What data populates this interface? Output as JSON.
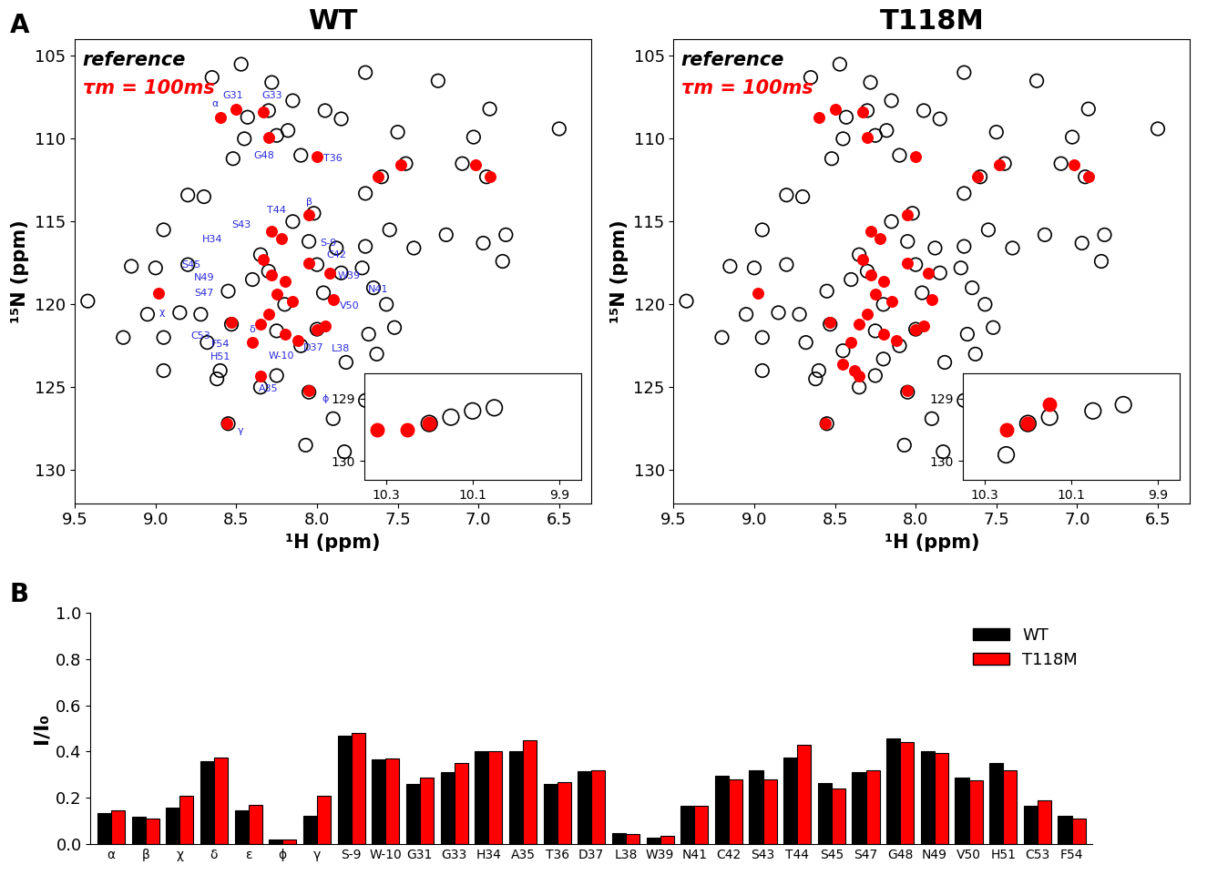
{
  "chart_data": [
    {
      "type": "scatter",
      "panel_label": "A",
      "title": "WT",
      "x_label": "¹H (ppm)",
      "y_label": "¹⁵N (ppm)",
      "xlim": [
        9.5,
        6.3
      ],
      "ylim": [
        132,
        104
      ],
      "xticks": [
        {
          "value": 9.5,
          "label": "9.5"
        },
        {
          "value": 9,
          "label": "9.0"
        },
        {
          "value": 8.5,
          "label": "8.5"
        },
        {
          "value": 8,
          "label": "8.0"
        },
        {
          "value": 7.5,
          "label": "7.5"
        },
        {
          "value": 7,
          "label": "7.0"
        },
        {
          "value": 6.5,
          "label": "6.5"
        }
      ],
      "yticks": [
        105,
        110,
        115,
        120,
        125,
        130
      ],
      "grid": false,
      "marker": "o",
      "series": [
        {
          "name": "reference",
          "color": "#000000",
          "x": [
            9.42,
            9.2,
            8.95,
            8.95,
            9.15,
            9.0,
            8.8,
            8.65,
            8.47,
            8.28,
            8.15,
            7.95,
            7.85,
            7.7,
            7.25,
            6.93,
            6.5,
            7.5,
            7.03,
            8.8,
            8.95,
            8.55,
            8.7,
            8.52,
            7.7,
            7.55,
            7.4,
            7.2,
            6.97,
            6.83,
            6.85,
            7.7,
            7.72,
            7.88,
            7.85,
            7.65,
            7.57,
            7.52,
            7.63,
            7.68,
            7.82,
            7.9,
            7.83,
            8.07,
            7.7,
            8.62,
            8.6,
            8.55,
            9.05,
            8.85,
            8.72,
            8.68,
            8.53,
            8.2,
            8.3,
            8.35,
            8.4,
            8.25,
            8.1,
            8.0,
            8.05,
            8.25,
            8.35,
            8.15,
            8.05,
            8.0,
            7.96,
            8.02,
            7.6,
            7.45,
            7.1,
            6.95,
            8.43,
            8.3,
            8.18,
            8.1,
            8.45,
            8.25
          ],
          "y": [
            119.8,
            122.0,
            124.0,
            122.0,
            117.7,
            117.8,
            117.6,
            106.3,
            105.5,
            106.6,
            107.7,
            108.3,
            108.8,
            106.0,
            106.5,
            108.2,
            109.4,
            109.6,
            109.9,
            113.4,
            115.5,
            119.2,
            113.5,
            111.2,
            113.3,
            115.5,
            116.6,
            115.8,
            116.3,
            115.8,
            117.4,
            116.5,
            117.8,
            116.6,
            118.1,
            119.0,
            120.0,
            121.4,
            123.0,
            121.8,
            123.5,
            126.9,
            128.9,
            128.5,
            125.8,
            124.5,
            124.0,
            127.2,
            120.6,
            120.5,
            120.6,
            122.3,
            121.2,
            120.0,
            118.0,
            117.0,
            118.5,
            121.6,
            122.5,
            121.5,
            125.3,
            124.3,
            125.0,
            115.0,
            116.2,
            117.6,
            119.3,
            114.5,
            112.3,
            111.5,
            111.5,
            112.3,
            108.7,
            108.3,
            109.5,
            111.0,
            110.0,
            109.8
          ]
        },
        {
          "name": "τm = 100ms",
          "color": "#ff0000",
          "x": [
            8.6,
            8.5,
            8.33,
            8.3,
            8.0,
            7.62,
            7.48,
            7.02,
            6.93,
            8.28,
            8.22,
            8.05,
            8.33,
            8.28,
            8.2,
            8.25,
            8.15,
            8.05,
            7.92,
            7.9,
            8.3,
            8.35,
            8.2,
            8.0,
            7.95,
            8.53,
            8.98,
            8.35,
            8.05,
            8.56,
            8.4,
            8.12
          ],
          "y": [
            108.7,
            108.2,
            108.4,
            109.9,
            111.1,
            112.3,
            111.6,
            111.6,
            112.3,
            115.6,
            116.0,
            114.6,
            117.3,
            118.2,
            118.6,
            119.4,
            119.8,
            117.5,
            118.1,
            119.7,
            120.6,
            121.2,
            121.8,
            121.5,
            121.3,
            121.1,
            119.3,
            124.3,
            125.2,
            127.2,
            122.3,
            122.2
          ]
        }
      ],
      "annotations": [
        {
          "text": "α",
          "x": 8.63,
          "y": 107.9
        },
        {
          "text": "G31",
          "x": 8.52,
          "y": 107.4
        },
        {
          "text": "G33",
          "x": 8.28,
          "y": 107.4
        },
        {
          "text": "G48",
          "x": 8.33,
          "y": 111.0
        },
        {
          "text": "T36",
          "x": 7.9,
          "y": 111.2
        },
        {
          "text": "β",
          "x": 8.05,
          "y": 113.8
        },
        {
          "text": "T44",
          "x": 8.25,
          "y": 114.3
        },
        {
          "text": "S43",
          "x": 8.47,
          "y": 115.2
        },
        {
          "text": "H34",
          "x": 8.65,
          "y": 116.1
        },
        {
          "text": "S-9",
          "x": 7.93,
          "y": 116.3
        },
        {
          "text": "C42",
          "x": 7.88,
          "y": 117.0
        },
        {
          "text": "W39",
          "x": 7.8,
          "y": 118.3
        },
        {
          "text": "S45",
          "x": 8.78,
          "y": 117.6
        },
        {
          "text": "N49",
          "x": 8.7,
          "y": 118.4
        },
        {
          "text": "N41",
          "x": 7.62,
          "y": 119.1
        },
        {
          "text": "S47",
          "x": 8.7,
          "y": 119.3
        },
        {
          "text": "V50",
          "x": 7.8,
          "y": 120.1
        },
        {
          "text": "χ",
          "x": 8.96,
          "y": 120.5
        },
        {
          "text": "C53",
          "x": 8.72,
          "y": 121.9
        },
        {
          "text": "F54",
          "x": 8.6,
          "y": 122.4
        },
        {
          "text": "δ",
          "x": 8.4,
          "y": 121.5
        },
        {
          "text": "H51",
          "x": 8.6,
          "y": 123.2
        },
        {
          "text": "W-10",
          "x": 8.22,
          "y": 123.1
        },
        {
          "text": "D37",
          "x": 8.02,
          "y": 122.6
        },
        {
          "text": "L38",
          "x": 7.85,
          "y": 122.7
        },
        {
          "text": "A35",
          "x": 8.3,
          "y": 125.1
        },
        {
          "text": "ϕ",
          "x": 7.95,
          "y": 125.7
        },
        {
          "text": "γ",
          "x": 8.47,
          "y": 127.6
        }
      ],
      "inset": {
        "xlim": [
          10.35,
          9.85
        ],
        "ylim": [
          130.3,
          128.6
        ],
        "xticks": [
          10.3,
          10.1,
          9.9
        ],
        "yticks": [
          129,
          130
        ],
        "series": [
          {
            "name": "reference",
            "color": "#000000",
            "x": [
              10.2,
              10.15,
              10.1,
              10.05
            ],
            "y": [
              129.4,
              129.3,
              129.2,
              129.15
            ]
          },
          {
            "name": "τm = 100ms",
            "color": "#ff0000",
            "x": [
              10.25,
              10.2,
              10.32
            ],
            "y": [
              129.5,
              129.4,
              129.5
            ]
          }
        ]
      }
    },
    {
      "type": "scatter",
      "title": "T118M",
      "x_label": "¹H (ppm)",
      "y_label": "¹⁵N (ppm)",
      "xlim": [
        9.5,
        6.3
      ],
      "ylim": [
        132,
        104
      ],
      "xticks": [
        {
          "value": 9.5,
          "label": "9.5"
        },
        {
          "value": 9,
          "label": "9.0"
        },
        {
          "value": 8.5,
          "label": "8.5"
        },
        {
          "value": 8,
          "label": "8.0"
        },
        {
          "value": 7.5,
          "label": "7.5"
        },
        {
          "value": 7,
          "label": "7.0"
        },
        {
          "value": 6.5,
          "label": "6.5"
        }
      ],
      "yticks": [
        105,
        110,
        115,
        120,
        125,
        130
      ],
      "grid": false,
      "marker": "o",
      "series": [
        {
          "name": "reference",
          "color": "#000000",
          "x": [
            9.42,
            9.2,
            8.95,
            8.95,
            9.15,
            9.0,
            8.8,
            8.65,
            8.47,
            8.28,
            8.15,
            7.95,
            7.85,
            7.7,
            7.25,
            6.93,
            6.5,
            7.5,
            7.03,
            8.8,
            8.95,
            8.55,
            8.7,
            8.52,
            7.7,
            7.55,
            7.4,
            7.2,
            6.97,
            6.83,
            6.85,
            7.7,
            7.72,
            7.88,
            7.85,
            7.65,
            7.57,
            7.52,
            7.63,
            7.68,
            7.82,
            7.9,
            7.83,
            8.07,
            7.7,
            8.62,
            8.6,
            8.55,
            9.05,
            8.85,
            8.72,
            8.68,
            8.53,
            8.2,
            8.3,
            8.35,
            8.4,
            8.25,
            8.1,
            8.0,
            8.05,
            8.25,
            8.35,
            8.15,
            8.05,
            8.0,
            7.96,
            8.02,
            7.6,
            7.45,
            7.1,
            6.95,
            8.43,
            8.3,
            8.18,
            8.1,
            8.45,
            8.25,
            8.45,
            8.2
          ],
          "y": [
            119.8,
            122.0,
            124.0,
            122.0,
            117.7,
            117.8,
            117.6,
            106.3,
            105.5,
            106.6,
            107.7,
            108.3,
            108.8,
            106.0,
            106.5,
            108.2,
            109.4,
            109.6,
            109.9,
            113.4,
            115.5,
            119.2,
            113.5,
            111.2,
            113.3,
            115.5,
            116.6,
            115.8,
            116.3,
            115.8,
            117.4,
            116.5,
            117.8,
            116.6,
            118.1,
            119.0,
            120.0,
            121.4,
            123.0,
            121.8,
            123.5,
            126.9,
            128.9,
            128.5,
            125.8,
            124.5,
            124.0,
            127.2,
            120.6,
            120.5,
            120.6,
            122.3,
            121.2,
            120.0,
            118.0,
            117.0,
            118.5,
            121.6,
            122.5,
            121.5,
            125.3,
            124.3,
            125.0,
            115.0,
            116.2,
            117.6,
            119.3,
            114.5,
            112.3,
            111.5,
            111.5,
            112.3,
            108.7,
            108.3,
            109.5,
            111.0,
            110.0,
            109.8,
            122.8,
            123.3
          ]
        },
        {
          "name": "τm = 100ms",
          "color": "#ff0000",
          "x": [
            8.6,
            8.5,
            8.33,
            8.3,
            8.0,
            7.62,
            7.48,
            7.02,
            6.93,
            8.28,
            8.22,
            8.05,
            8.33,
            8.28,
            8.2,
            8.25,
            8.15,
            8.05,
            7.92,
            7.9,
            8.3,
            8.35,
            8.2,
            8.0,
            7.95,
            8.53,
            8.98,
            8.35,
            8.05,
            8.56,
            8.4,
            8.12,
            8.45,
            8.38
          ],
          "y": [
            108.7,
            108.2,
            108.4,
            109.9,
            111.1,
            112.3,
            111.6,
            111.6,
            112.3,
            115.6,
            116.0,
            114.6,
            117.3,
            118.2,
            118.6,
            119.4,
            119.8,
            117.5,
            118.1,
            119.7,
            120.6,
            121.2,
            121.8,
            121.5,
            121.3,
            121.1,
            119.3,
            124.3,
            125.2,
            127.2,
            122.3,
            122.2,
            123.6,
            124.0
          ]
        }
      ],
      "inset": {
        "xlim": [
          10.35,
          9.85
        ],
        "ylim": [
          130.3,
          128.6
        ],
        "xticks": [
          10.3,
          10.1,
          9.9
        ],
        "yticks": [
          129,
          130
        ],
        "series": [
          {
            "name": "reference",
            "color": "#000000",
            "x": [
              10.2,
              10.15,
              10.05,
              9.98,
              10.25
            ],
            "y": [
              129.4,
              129.3,
              129.2,
              129.1,
              129.9
            ]
          },
          {
            "name": "τm = 100ms",
            "color": "#ff0000",
            "x": [
              10.25,
              10.2,
              10.15
            ],
            "y": [
              129.5,
              129.4,
              129.1
            ]
          }
        ]
      }
    },
    {
      "type": "bar",
      "panel_label": "B",
      "y_label": "I/I₀",
      "categories": [
        "α",
        "β",
        "χ",
        "δ",
        "ε",
        "ϕ",
        "γ",
        "S-9",
        "W-10",
        "G31",
        "G33",
        "H34",
        "A35",
        "T36",
        "D37",
        "L38",
        "W39",
        "N41",
        "C42",
        "S43",
        "T44",
        "S45",
        "S47",
        "G48",
        "N49",
        "V50",
        "H51",
        "C53",
        "F54"
      ],
      "ylim": [
        0,
        1
      ],
      "yticks": [
        {
          "value": 0,
          "label": "0.0"
        },
        {
          "value": 0.2,
          "label": "0.2"
        },
        {
          "value": 0.4,
          "label": "0.4"
        },
        {
          "value": 0.6,
          "label": "0.6"
        },
        {
          "value": 0.8,
          "label": "0.8"
        },
        {
          "value": 1,
          "label": "1.0"
        }
      ],
      "legend": "upper right",
      "grid": false,
      "series": [
        {
          "name": "WT",
          "color": "#000000",
          "values": [
            0.135,
            0.12,
            0.16,
            0.36,
            0.145,
            0.02,
            0.125,
            0.47,
            0.365,
            0.26,
            0.31,
            0.4,
            0.4,
            0.26,
            0.315,
            0.05,
            0.03,
            0.165,
            0.295,
            0.32,
            0.375,
            0.265,
            0.31,
            0.455,
            0.4,
            0.29,
            0.35,
            0.165,
            0.125
          ]
        },
        {
          "name": "T118M",
          "color": "#ff0000",
          "values": [
            0.145,
            0.11,
            0.21,
            0.375,
            0.17,
            0.02,
            0.21,
            0.48,
            0.37,
            0.29,
            0.35,
            0.4,
            0.45,
            0.27,
            0.32,
            0.045,
            0.035,
            0.165,
            0.28,
            0.28,
            0.43,
            0.24,
            0.32,
            0.44,
            0.395,
            0.275,
            0.32,
            0.19,
            0.11
          ]
        }
      ]
    }
  ]
}
